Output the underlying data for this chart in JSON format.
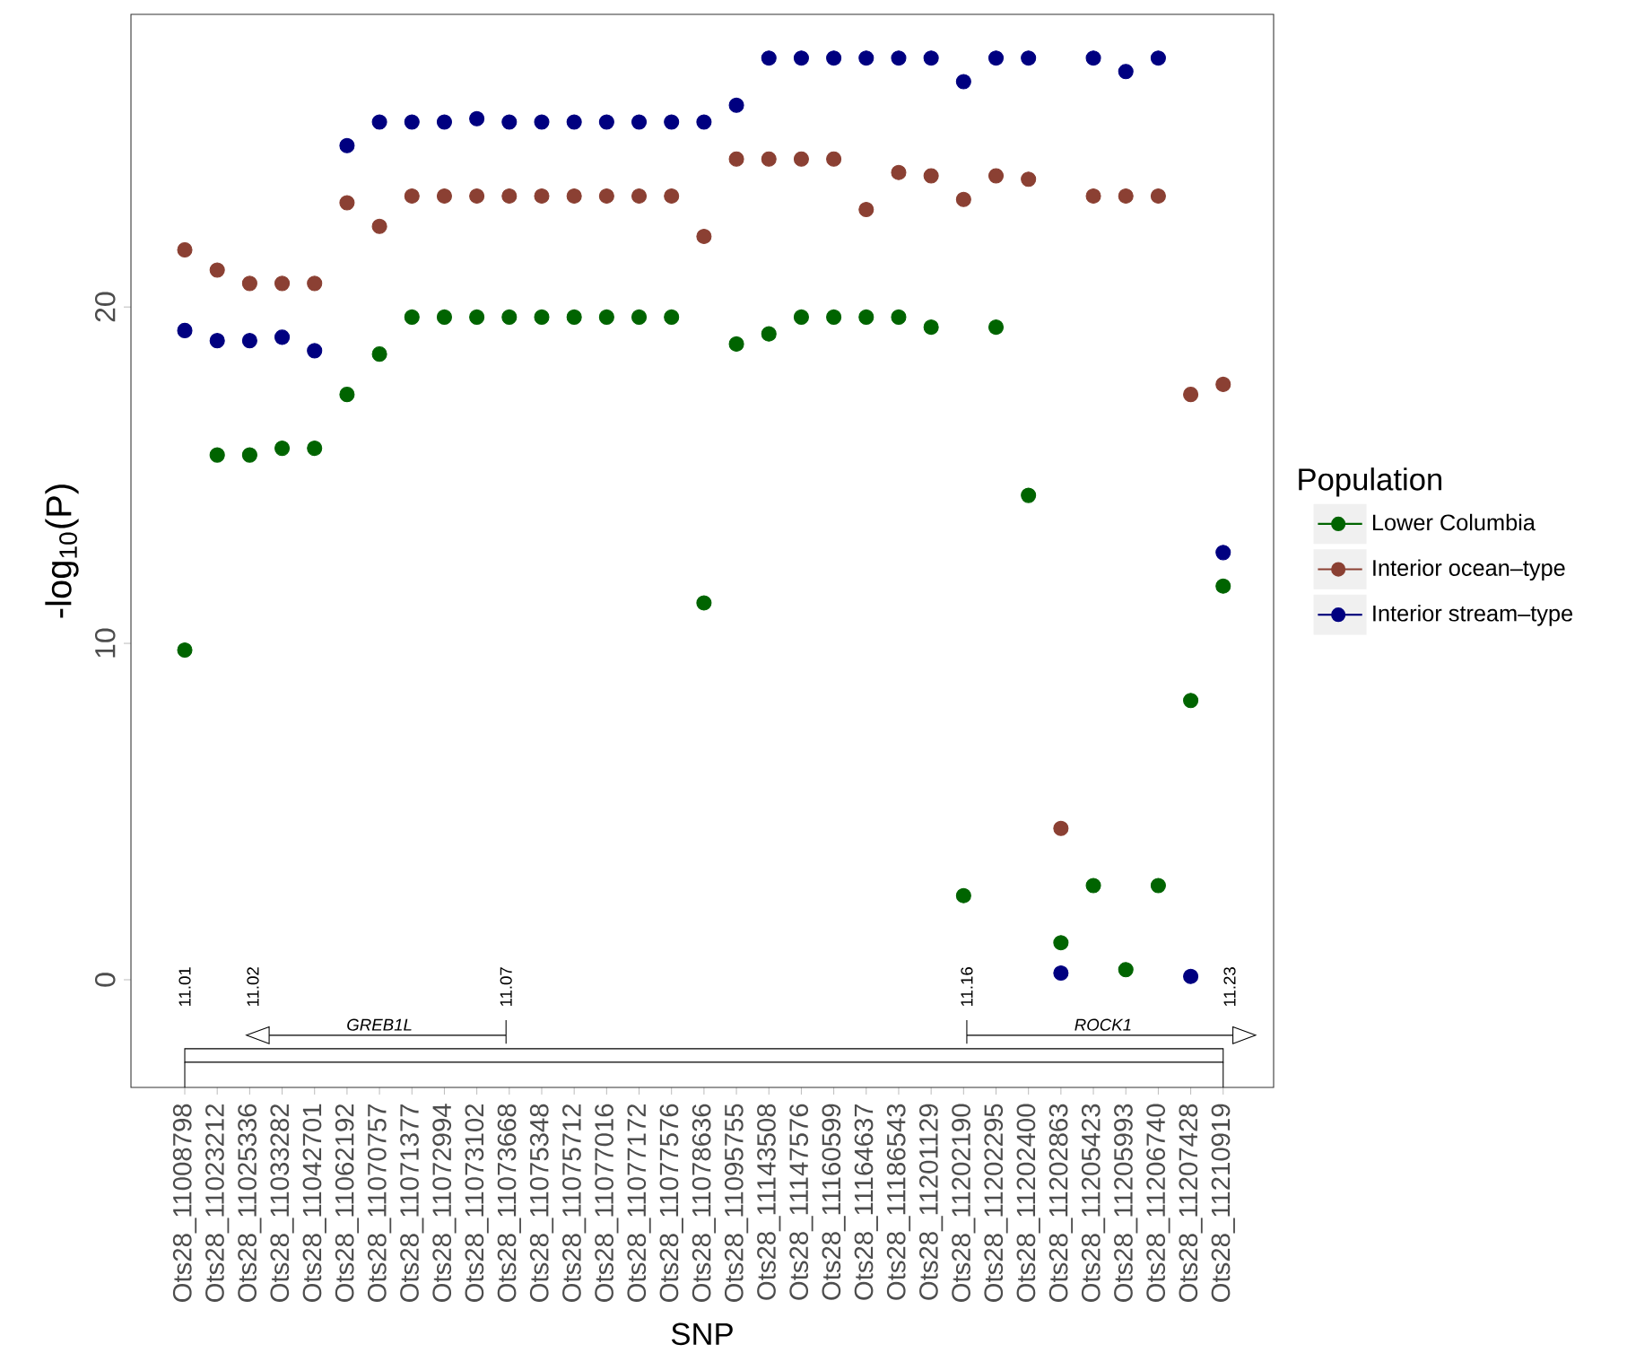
{
  "chart_data": {
    "type": "scatter",
    "xlabel": "SNP",
    "ylabel": "-log$_{10}$(P)",
    "legend_title": "Population",
    "categories": [
      "Ots28_11008798",
      "Ots28_11023212",
      "Ots28_11025336",
      "Ots28_11033282",
      "Ots28_11042701",
      "Ots28_11062192",
      "Ots28_11070757",
      "Ots28_11071377",
      "Ots28_11072994",
      "Ots28_11073102",
      "Ots28_11073668",
      "Ots28_11075348",
      "Ots28_11075712",
      "Ots28_11077016",
      "Ots28_11077172",
      "Ots28_11077576",
      "Ots28_11078636",
      "Ots28_11095755",
      "Ots28_11143508",
      "Ots28_11147576",
      "Ots28_11160599",
      "Ots28_11164637",
      "Ots28_11186543",
      "Ots28_11201129",
      "Ots28_11202190",
      "Ots28_11202295",
      "Ots28_11202400",
      "Ots28_11202863",
      "Ots28_11205423",
      "Ots28_11205993",
      "Ots28_11206740",
      "Ots28_11207428",
      "Ots28_11210919"
    ],
    "series": [
      {
        "name": "Lower Columbia",
        "color": "#006400",
        "values": [
          9.8,
          15.6,
          15.6,
          15.8,
          15.8,
          17.4,
          18.6,
          19.7,
          19.7,
          19.7,
          19.7,
          19.7,
          19.7,
          19.7,
          19.7,
          19.7,
          11.2,
          18.9,
          19.2,
          19.7,
          19.7,
          19.7,
          19.7,
          19.4,
          2.5,
          19.4,
          14.4,
          1.1,
          2.8,
          0.3,
          2.8,
          8.3,
          11.7
        ]
      },
      {
        "name": "Interior ocean–type",
        "color": "#8b4033",
        "values": [
          21.7,
          21.1,
          20.7,
          20.7,
          20.7,
          23.1,
          22.4,
          23.3,
          23.3,
          23.3,
          23.3,
          23.3,
          23.3,
          23.3,
          23.3,
          23.3,
          22.1,
          24.4,
          24.4,
          24.4,
          24.4,
          22.9,
          24.0,
          23.9,
          23.2,
          23.9,
          23.8,
          4.5,
          23.3,
          23.3,
          23.3,
          17.4,
          17.7
        ]
      },
      {
        "name": "Interior stream–type",
        "color": "#000080",
        "values": [
          19.3,
          19.0,
          19.0,
          19.1,
          18.7,
          24.8,
          25.5,
          25.5,
          25.5,
          25.6,
          25.5,
          25.5,
          25.5,
          25.5,
          25.5,
          25.5,
          25.5,
          26.0,
          27.4,
          27.4,
          27.4,
          27.4,
          27.4,
          27.4,
          26.7,
          27.4,
          27.4,
          0.2,
          27.4,
          27.0,
          27.4,
          0.1,
          12.7
        ]
      }
    ],
    "ylim": [
      -3.2,
      28.7
    ],
    "yticks": [
      0,
      10,
      20
    ],
    "legend": "right",
    "marker": "circle",
    "grid": false,
    "annotations": [
      "11.01",
      "11.02",
      "11.07",
      "11.16",
      "11.23",
      "GREB1L",
      "ROCK1"
    ]
  }
}
